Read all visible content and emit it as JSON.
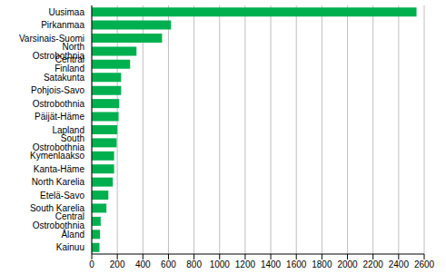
{
  "chart_data": {
    "type": "bar",
    "orientation": "horizontal",
    "categories": [
      "Uusimaa",
      "Pirkanmaa",
      "Varsinais-Suomi",
      "North Ostrobothnia",
      "Central Finland",
      "Satakunta",
      "Pohjois-Savo",
      "Ostrobothnia",
      "Päijät-Häme",
      "Lapland",
      "South Ostrobothnia",
      "Kymenlaakso",
      "Kanta-Häme",
      "North Karelia",
      "Etelä-Savo",
      "South Karelia",
      "Central Ostrobothnia",
      "Åland",
      "Kainuu"
    ],
    "values": [
      2540,
      620,
      550,
      350,
      300,
      230,
      230,
      215,
      210,
      200,
      195,
      175,
      175,
      165,
      130,
      115,
      70,
      65,
      60
    ],
    "color": "#00b04f",
    "xlim": [
      0,
      2600
    ],
    "xticks": [
      0,
      200,
      400,
      600,
      800,
      1000,
      1200,
      1400,
      1600,
      1800,
      2000,
      2200,
      2400,
      2600
    ],
    "grid": true
  }
}
